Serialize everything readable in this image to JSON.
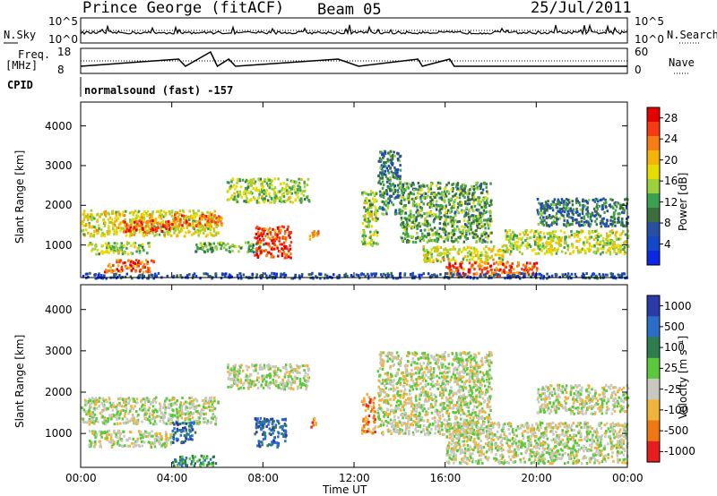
{
  "header": {
    "station": "Prince George (fitACF)",
    "beam": "Beam 05",
    "date": "25/Jul/2011"
  },
  "strips": {
    "nsky_label": "N.Sky",
    "nsearch_label": "N.Search",
    "freq_label": "Freq.",
    "freq_unit": "[MHz]",
    "nave_label": "Nave",
    "cpid_label": "CPID",
    "cpid_text": "normalsound (fast) -157",
    "nsky_ticks": [
      "10^5",
      "10^0"
    ],
    "nsearch_ticks": [
      "10^5",
      "10^0"
    ],
    "freq_ticks": [
      "18",
      "8"
    ],
    "nave_ticks": [
      "60",
      "0"
    ]
  },
  "chart_data": [
    {
      "type": "heatmap",
      "name": "power",
      "ylabel": "Slant Range [km]",
      "xlabel": "",
      "x_ticks": [
        "00:00",
        "04:00",
        "08:00",
        "12:00",
        "16:00",
        "20:00",
        "00:00"
      ],
      "y_ticks": [
        "1000",
        "2000",
        "3000",
        "4000"
      ],
      "xlim_hours": [
        0,
        24
      ],
      "ylim_km": [
        180,
        4600
      ],
      "colorbar_label": "Power [dB]",
      "colorbar_ticks": [
        "28",
        "24",
        "20",
        "16",
        "12",
        "8",
        "4"
      ],
      "colorbar_colors": [
        "#e60000",
        "#f53a14",
        "#f57d14",
        "#f5b40a",
        "#e6dc00",
        "#9bd23c",
        "#3ca050",
        "#3c6e3c",
        "#2850a0",
        "#1446c8",
        "#0a28e6"
      ],
      "scatter_patches": [
        {
          "t": [
            0.0,
            6.0
          ],
          "r": [
            1250,
            1900
          ],
          "level": 0.6
        },
        {
          "t": [
            1.8,
            4.0
          ],
          "r": [
            1350,
            1650
          ],
          "level": 0.9
        },
        {
          "t": [
            0.3,
            3.0
          ],
          "r": [
            800,
            1100
          ],
          "level": 0.5
        },
        {
          "t": [
            1.0,
            3.2
          ],
          "r": [
            350,
            650
          ],
          "level": 0.85
        },
        {
          "t": [
            4.0,
            6.2
          ],
          "r": [
            1500,
            1800
          ],
          "level": 0.8
        },
        {
          "t": [
            6.4,
            10.0
          ],
          "r": [
            2100,
            2700
          ],
          "level": 0.5
        },
        {
          "t": [
            5.0,
            8.0
          ],
          "r": [
            850,
            1100
          ],
          "level": 0.4
        },
        {
          "t": [
            7.6,
            9.2
          ],
          "r": [
            700,
            1500
          ],
          "level": 0.9
        },
        {
          "t": [
            10.0,
            10.4
          ],
          "r": [
            1150,
            1400
          ],
          "level": 0.8
        },
        {
          "t": [
            12.3,
            13.0
          ],
          "r": [
            1000,
            2400
          ],
          "level": 0.5
        },
        {
          "t": [
            13.0,
            14.0
          ],
          "r": [
            1800,
            3400
          ],
          "level": 0.3
        },
        {
          "t": [
            14.0,
            18.0
          ],
          "r": [
            1100,
            2600
          ],
          "level": 0.4
        },
        {
          "t": [
            15.0,
            18.5
          ],
          "r": [
            600,
            1000
          ],
          "level": 0.6
        },
        {
          "t": [
            16.0,
            20.0
          ],
          "r": [
            250,
            600
          ],
          "level": 0.85
        },
        {
          "t": [
            18.5,
            24.0
          ],
          "r": [
            800,
            1400
          ],
          "level": 0.55
        },
        {
          "t": [
            20.0,
            24.0
          ],
          "r": [
            1500,
            2200
          ],
          "level": 0.3
        },
        {
          "t": [
            0.0,
            24.0
          ],
          "r": [
            190,
            320
          ],
          "level": 0.15
        }
      ]
    },
    {
      "type": "heatmap",
      "name": "velocity",
      "ylabel": "Slant Range [km]",
      "xlabel": "Time UT",
      "x_ticks": [
        "00:00",
        "04:00",
        "08:00",
        "12:00",
        "16:00",
        "20:00",
        "00:00"
      ],
      "y_ticks": [
        "1000",
        "2000",
        "3000",
        "4000"
      ],
      "xlim_hours": [
        0,
        24
      ],
      "ylim_km": [
        180,
        4600
      ],
      "colorbar_label": "Velocity [m s⁻¹]",
      "colorbar_ticks": [
        "1000",
        "500",
        "100",
        "25",
        "-25",
        "-100",
        "-500",
        "-1000"
      ],
      "colorbar_colors": [
        "#2a3aa8",
        "#2a6ec8",
        "#2e7d4f",
        "#5cc83c",
        "#c8c8c0",
        "#f0b43c",
        "#f07814",
        "#e61e1e"
      ],
      "scatter_patches": [
        {
          "t": [
            0.0,
            6.0
          ],
          "r": [
            1250,
            1900
          ],
          "level": 0.45
        },
        {
          "t": [
            0.3,
            4.0
          ],
          "r": [
            700,
            1100
          ],
          "level": 0.45
        },
        {
          "t": [
            4.0,
            5.0
          ],
          "r": [
            800,
            1300
          ],
          "level": 0.85
        },
        {
          "t": [
            4.0,
            6.0
          ],
          "r": [
            250,
            500
          ],
          "level": 0.7
        },
        {
          "t": [
            6.4,
            10.0
          ],
          "r": [
            2100,
            2700
          ],
          "level": 0.45
        },
        {
          "t": [
            7.6,
            9.0
          ],
          "r": [
            700,
            1400
          ],
          "level": 0.85
        },
        {
          "t": [
            10.0,
            10.3
          ],
          "r": [
            1150,
            1400
          ],
          "level": 0.2
        },
        {
          "t": [
            12.3,
            12.9
          ],
          "r": [
            1000,
            2000
          ],
          "level": 0.2
        },
        {
          "t": [
            13.0,
            18.0
          ],
          "r": [
            1000,
            3000
          ],
          "level": 0.45
        },
        {
          "t": [
            16.0,
            24.0
          ],
          "r": [
            300,
            1300
          ],
          "level": 0.45
        },
        {
          "t": [
            20.0,
            24.0
          ],
          "r": [
            1500,
            2200
          ],
          "level": 0.45
        }
      ]
    }
  ]
}
